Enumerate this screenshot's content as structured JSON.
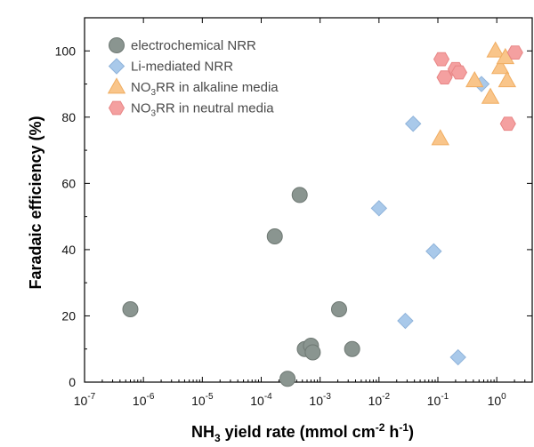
{
  "chart_data": {
    "type": "scatter",
    "xscale": "log",
    "xlim": [
      1e-07,
      4
    ],
    "ylim": [
      0,
      110
    ],
    "yticks": [
      0,
      20,
      40,
      60,
      80,
      100
    ],
    "xtick_base": "10",
    "xtick_exponents": [
      "-7",
      "-6",
      "-5",
      "-4",
      "-3",
      "-2",
      "-1",
      "0"
    ],
    "xlabel": {
      "pre": "NH",
      "sub": "3",
      "mid": " yield rate (mmol cm",
      "sup1": "-2",
      "mid2": " h",
      "sup2": "-1",
      "post": ")"
    },
    "ylabel": "Faradaic efficiency (%)",
    "grid": false,
    "legend_position": "top-left",
    "series": [
      {
        "name_parts": {
          "main": "electrochemical NRR"
        },
        "marker": "circle",
        "color": "#8a9590",
        "stroke": "#6e7873",
        "points": [
          {
            "x": 6e-07,
            "y": 22
          },
          {
            "x": 0.00017,
            "y": 44
          },
          {
            "x": 0.00028,
            "y": 1
          },
          {
            "x": 0.00045,
            "y": 56.5
          },
          {
            "x": 0.00055,
            "y": 10
          },
          {
            "x": 0.0007,
            "y": 11
          },
          {
            "x": 0.00075,
            "y": 9
          },
          {
            "x": 0.0021,
            "y": 22
          },
          {
            "x": 0.0035,
            "y": 10
          }
        ]
      },
      {
        "name_parts": {
          "main": "Li-mediated NRR"
        },
        "marker": "diamond",
        "color": "#a9c9ea",
        "stroke": "#8fb3da",
        "points": [
          {
            "x": 0.01,
            "y": 52.5
          },
          {
            "x": 0.028,
            "y": 18.5
          },
          {
            "x": 0.038,
            "y": 78
          },
          {
            "x": 0.085,
            "y": 39.5
          },
          {
            "x": 0.22,
            "y": 7.5
          },
          {
            "x": 0.55,
            "y": 90
          }
        ]
      },
      {
        "name_parts": {
          "pre": "NO",
          "sub": "3",
          "post": "RR in alkaline media"
        },
        "marker": "triangle",
        "color": "#f9c58a",
        "stroke": "#f0ad62",
        "points": [
          {
            "x": 0.11,
            "y": 73.5
          },
          {
            "x": 0.42,
            "y": 91
          },
          {
            "x": 0.78,
            "y": 86
          },
          {
            "x": 0.95,
            "y": 100
          },
          {
            "x": 1.15,
            "y": 95
          },
          {
            "x": 1.4,
            "y": 98
          },
          {
            "x": 1.5,
            "y": 91
          }
        ]
      },
      {
        "name_parts": {
          "pre": "NO",
          "sub": "3",
          "post": "RR in neutral media"
        },
        "marker": "hexagon",
        "color": "#f4a0a0",
        "stroke": "#e88585",
        "points": [
          {
            "x": 0.115,
            "y": 97.5
          },
          {
            "x": 0.13,
            "y": 92
          },
          {
            "x": 0.2,
            "y": 94.5
          },
          {
            "x": 0.23,
            "y": 93.5
          },
          {
            "x": 1.55,
            "y": 78
          },
          {
            "x": 2.05,
            "y": 99.5
          }
        ]
      }
    ]
  }
}
